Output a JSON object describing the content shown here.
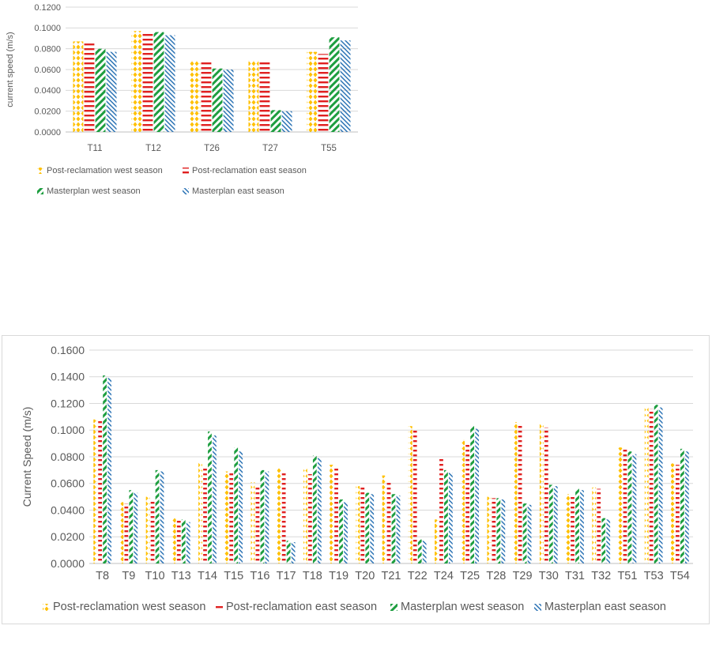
{
  "chart_data": [
    {
      "type": "bar",
      "ylabel": "current speed (m/s)",
      "xlabel": "",
      "ylim": [
        0,
        0.12
      ],
      "yticks": [
        "0.0000",
        "0.0200",
        "0.0400",
        "0.0600",
        "0.0800",
        "0.1000",
        "0.1200"
      ],
      "grid": true,
      "legend_position": "bottom",
      "categories": [
        "T11",
        "T12",
        "T26",
        "T27",
        "T55"
      ],
      "series": [
        {
          "name": "Post-reclamation west season",
          "color": "#ffc000",
          "pattern": "dots",
          "values": [
            0.087,
            0.097,
            0.069,
            0.069,
            0.077
          ]
        },
        {
          "name": "Post-reclamation east season",
          "color": "#e02020",
          "pattern": "dashes",
          "values": [
            0.085,
            0.095,
            0.068,
            0.068,
            0.075
          ]
        },
        {
          "name": "Masterplan west season",
          "color": "#1e9e40",
          "pattern": "diagonal",
          "values": [
            0.08,
            0.096,
            0.061,
            0.021,
            0.091
          ]
        },
        {
          "name": "Masterplan east season",
          "color": "#2e75b6",
          "pattern": "hatch",
          "values": [
            0.077,
            0.093,
            0.06,
            0.02,
            0.088
          ]
        }
      ]
    },
    {
      "type": "bar",
      "ylabel": "Current Speed (m/s)",
      "xlabel": "",
      "ylim": [
        0,
        0.16
      ],
      "yticks": [
        "0.0000",
        "0.0200",
        "0.0400",
        "0.0600",
        "0.0800",
        "0.1000",
        "0.1200",
        "0.1400",
        "0.1600"
      ],
      "grid": true,
      "legend_position": "bottom",
      "categories": [
        "T8",
        "T9",
        "T10",
        "T13",
        "T14",
        "T15",
        "T16",
        "T17",
        "T18",
        "T19",
        "T20",
        "T21",
        "T22",
        "T24",
        "T25",
        "T28",
        "T29",
        "T30",
        "T31",
        "T32",
        "T51",
        "T53",
        "T54"
      ],
      "series": [
        {
          "name": "Post-reclamation west season",
          "color": "#ffc000",
          "pattern": "dots",
          "values": [
            0.108,
            0.046,
            0.05,
            0.034,
            0.076,
            0.069,
            0.061,
            0.072,
            0.071,
            0.074,
            0.058,
            0.066,
            0.103,
            0.033,
            0.093,
            0.05,
            0.106,
            0.105,
            0.052,
            0.057,
            0.087,
            0.117,
            0.075
          ]
        },
        {
          "name": "Post-reclamation east season",
          "color": "#e02020",
          "pattern": "dashes",
          "values": [
            0.107,
            0.045,
            0.048,
            0.034,
            0.073,
            0.068,
            0.059,
            0.069,
            0.067,
            0.072,
            0.057,
            0.062,
            0.101,
            0.08,
            0.089,
            0.049,
            0.104,
            0.102,
            0.05,
            0.056,
            0.086,
            0.116,
            0.074
          ]
        },
        {
          "name": "Masterplan west season",
          "color": "#1e9e40",
          "pattern": "diagonal",
          "values": [
            0.141,
            0.055,
            0.07,
            0.033,
            0.099,
            0.087,
            0.07,
            0.017,
            0.081,
            0.048,
            0.053,
            0.052,
            0.018,
            0.07,
            0.103,
            0.049,
            0.045,
            0.059,
            0.056,
            0.034,
            0.084,
            0.119,
            0.086
          ]
        },
        {
          "name": "Masterplan east season",
          "color": "#2e75b6",
          "pattern": "hatch",
          "values": [
            0.139,
            0.053,
            0.069,
            0.031,
            0.096,
            0.084,
            0.069,
            0.016,
            0.079,
            0.046,
            0.052,
            0.051,
            0.017,
            0.068,
            0.101,
            0.048,
            0.044,
            0.058,
            0.055,
            0.033,
            0.082,
            0.117,
            0.084
          ]
        }
      ]
    }
  ]
}
